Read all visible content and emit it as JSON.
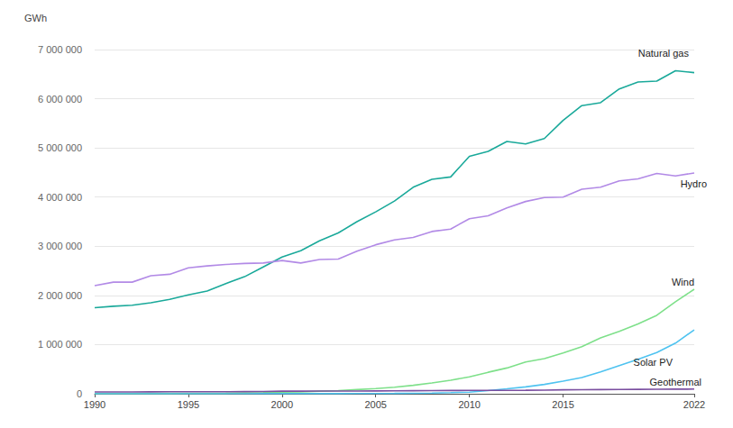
{
  "chart_data": {
    "type": "line",
    "y_label": "GWh",
    "x": [
      1990,
      1991,
      1992,
      1993,
      1994,
      1995,
      1996,
      1997,
      1998,
      1999,
      2000,
      2001,
      2002,
      2003,
      2004,
      2005,
      2006,
      2007,
      2008,
      2009,
      2010,
      2011,
      2012,
      2013,
      2014,
      2015,
      2016,
      2017,
      2018,
      2019,
      2020,
      2021,
      2022
    ],
    "xlim": [
      1990,
      2022
    ],
    "xticks": [
      1990,
      1995,
      2000,
      2005,
      2010,
      2015,
      2022
    ],
    "ylim": [
      0,
      7000000
    ],
    "yticks": [
      0,
      {
        "value": 1000000,
        "label": "1 000 000"
      },
      {
        "value": 2000000,
        "label": "2 000 000"
      },
      {
        "value": 3000000,
        "label": "3 000 000"
      },
      {
        "value": 4000000,
        "label": "4 000 000"
      },
      {
        "value": 5000000,
        "label": "5 000 000"
      },
      {
        "value": 6000000,
        "label": "6 000 000"
      },
      {
        "value": 7000000,
        "label": "7 000 000"
      }
    ],
    "grid": true,
    "series": [
      {
        "name": "Natural gas",
        "color": "#1aa99a",
        "values": [
          1750000,
          1780000,
          1800000,
          1850000,
          1920000,
          2010000,
          2090000,
          2240000,
          2380000,
          2580000,
          2780000,
          2910000,
          3110000,
          3270000,
          3500000,
          3700000,
          3920000,
          4200000,
          4360000,
          4410000,
          4830000,
          4930000,
          5130000,
          5080000,
          5190000,
          5560000,
          5860000,
          5920000,
          6200000,
          6340000,
          6360000,
          6570000,
          6530000
        ]
      },
      {
        "name": "Hydro",
        "color": "#b28ae6",
        "values": [
          2200000,
          2270000,
          2270000,
          2400000,
          2430000,
          2560000,
          2600000,
          2630000,
          2650000,
          2660000,
          2710000,
          2660000,
          2730000,
          2740000,
          2900000,
          3030000,
          3130000,
          3180000,
          3300000,
          3350000,
          3560000,
          3620000,
          3780000,
          3910000,
          3990000,
          4000000,
          4160000,
          4200000,
          4330000,
          4370000,
          4480000,
          4430000,
          4490000
        ]
      },
      {
        "name": "Wind",
        "color": "#7ee08a",
        "values": [
          4000,
          4000,
          5000,
          6000,
          7000,
          8000,
          9000,
          12000,
          16000,
          21000,
          31000,
          38000,
          52000,
          63000,
          85000,
          104000,
          133000,
          171000,
          220000,
          276000,
          342000,
          437000,
          524000,
          645000,
          716000,
          831000,
          959000,
          1135000,
          1270000,
          1420000,
          1595000,
          1870000,
          2125000
        ]
      },
      {
        "name": "Solar PV",
        "color": "#4fc3f0",
        "values": [
          400,
          500,
          500,
          600,
          700,
          800,
          900,
          1000,
          1200,
          1400,
          1600,
          2000,
          2500,
          3200,
          4200,
          5600,
          7000,
          9500,
          15000,
          22000,
          33000,
          64000,
          100000,
          140000,
          190000,
          256000,
          329000,
          444000,
          574000,
          700000,
          838000,
          1030000,
          1300000
        ]
      },
      {
        "name": "Geothermal",
        "color": "#7b4fa0",
        "values": [
          36000,
          37000,
          38000,
          39000,
          40000,
          40000,
          41000,
          42000,
          44000,
          46000,
          52000,
          53000,
          54000,
          55000,
          56000,
          58000,
          59000,
          61000,
          64000,
          66000,
          68000,
          69000,
          70000,
          71000,
          74000,
          80000,
          82000,
          85000,
          88000,
          90000,
          91000,
          94000,
          95000
        ]
      }
    ]
  }
}
